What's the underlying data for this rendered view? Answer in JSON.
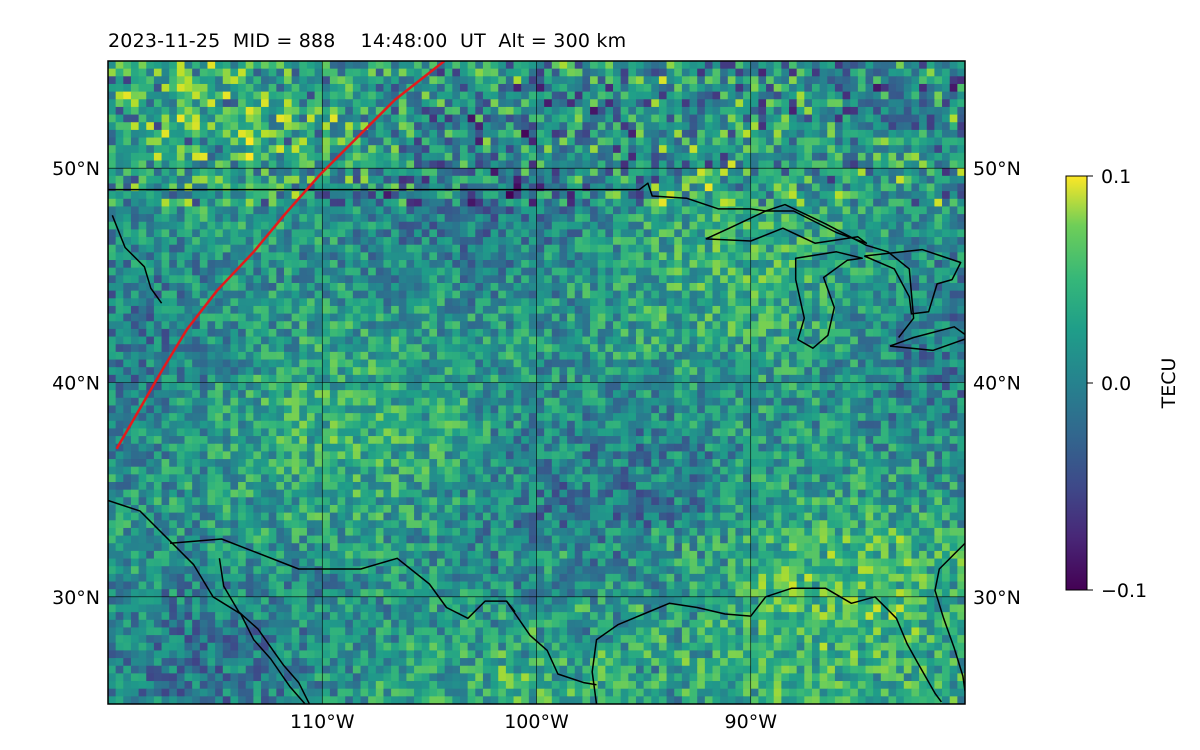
{
  "title": "2023-11-25  MID = 888    14:48:00  UT  Alt = 300 km",
  "map": {
    "lon_range": [
      -120,
      -80
    ],
    "lat_range": [
      25,
      55
    ],
    "lon_gridlines": [
      -120,
      -110,
      -100,
      -90,
      -80
    ],
    "lat_gridlines": [
      30,
      40,
      50
    ],
    "lon_tick_labels": [
      {
        "lon": -110,
        "label": "110°W"
      },
      {
        "lon": -100,
        "label": "100°W"
      },
      {
        "lon": -90,
        "label": "90°W"
      }
    ],
    "lat_tick_labels": [
      {
        "lat": 30,
        "label": "30°N"
      },
      {
        "lat": 40,
        "label": "40°N"
      },
      {
        "lat": 50,
        "label": "50°N"
      }
    ],
    "colormap": "viridis",
    "track_color": "#e41a1c",
    "track": [
      [
        -119.6,
        36.9
      ],
      [
        -118.5,
        38.8
      ],
      [
        -117.4,
        40.7
      ],
      [
        -116.3,
        42.5
      ],
      [
        -114.9,
        44.3
      ],
      [
        -113.2,
        46.1
      ],
      [
        -111.7,
        47.9
      ],
      [
        -110.1,
        49.7
      ],
      [
        -108.3,
        51.5
      ],
      [
        -106.6,
        53.2
      ],
      [
        -104.3,
        55.0
      ]
    ],
    "coastlines": [
      [
        [
          -119.8,
          47.8
        ],
        [
          -119.2,
          46.3
        ],
        [
          -118.3,
          45.4
        ],
        [
          -118.0,
          44.4
        ],
        [
          -117.5,
          43.7
        ]
      ],
      [
        [
          -120,
          34.5
        ],
        [
          -118.5,
          34.0
        ],
        [
          -117.2,
          32.7
        ],
        [
          -116.0,
          31.5
        ],
        [
          -115.1,
          30.0
        ],
        [
          -113.8,
          29.2
        ],
        [
          -113.2,
          28.0
        ],
        [
          -112.4,
          27.1
        ],
        [
          -111.5,
          25.8
        ],
        [
          -110.8,
          25.0
        ]
      ],
      [
        [
          -114.8,
          31.8
        ],
        [
          -114.6,
          30.5
        ],
        [
          -113.9,
          29.3
        ],
        [
          -113.0,
          28.5
        ],
        [
          -112.3,
          27.5
        ],
        [
          -111.8,
          26.8
        ],
        [
          -111.1,
          26.0
        ],
        [
          -110.6,
          25.0
        ]
      ],
      [
        [
          -97.2,
          25.0
        ],
        [
          -97.4,
          26.5
        ],
        [
          -97.2,
          28.0
        ],
        [
          -96.2,
          28.7
        ],
        [
          -95.0,
          29.2
        ],
        [
          -93.8,
          29.7
        ],
        [
          -92.5,
          29.5
        ],
        [
          -91.2,
          29.2
        ],
        [
          -90.0,
          29.1
        ],
        [
          -89.3,
          30.0
        ],
        [
          -88.1,
          30.4
        ],
        [
          -86.5,
          30.4
        ],
        [
          -85.3,
          29.7
        ],
        [
          -84.2,
          30.0
        ],
        [
          -83.2,
          29.0
        ],
        [
          -82.7,
          27.8
        ],
        [
          -82.2,
          26.9
        ],
        [
          -81.4,
          25.5
        ],
        [
          -81.1,
          25.1
        ]
      ],
      [
        [
          -80.0,
          32.5
        ],
        [
          -81.2,
          31.3
        ],
        [
          -81.4,
          30.3
        ],
        [
          -81.0,
          29.0
        ],
        [
          -80.5,
          27.6
        ],
        [
          -80.1,
          26.3
        ],
        [
          -80.0,
          25.6
        ]
      ]
    ],
    "borders": [
      [
        [
          -120,
          49.0
        ],
        [
          -95.2,
          49.0
        ],
        [
          -94.8,
          49.3
        ],
        [
          -94.6,
          48.7
        ],
        [
          -93.0,
          48.6
        ],
        [
          -91.5,
          48.1
        ],
        [
          -90.0,
          48.1
        ],
        [
          -89.3,
          48.0
        ],
        [
          -88.4,
          48.3
        ],
        [
          -86.5,
          47.4
        ],
        [
          -84.6,
          46.4
        ],
        [
          -83.6,
          46.1
        ],
        [
          -82.6,
          45.3
        ],
        [
          -82.4,
          43.0
        ],
        [
          -83.1,
          42.1
        ]
      ],
      [
        [
          -117.1,
          32.5
        ],
        [
          -114.7,
          32.7
        ],
        [
          -111.1,
          31.3
        ],
        [
          -108.2,
          31.3
        ],
        [
          -106.5,
          31.8
        ],
        [
          -105.0,
          30.6
        ],
        [
          -104.2,
          29.5
        ],
        [
          -103.2,
          29.0
        ],
        [
          -102.4,
          29.8
        ],
        [
          -101.4,
          29.8
        ],
        [
          -100.3,
          28.2
        ],
        [
          -99.5,
          27.5
        ],
        [
          -99.0,
          26.4
        ],
        [
          -97.8,
          26.0
        ],
        [
          -97.2,
          25.9
        ]
      ],
      [
        [
          -101.4,
          29.8
        ],
        [
          -101.0,
          29.3
        ]
      ]
    ],
    "lakes": [
      [
        [
          -92.1,
          46.7
        ],
        [
          -90.0,
          46.6
        ],
        [
          -88.5,
          47.2
        ],
        [
          -87.0,
          46.5
        ],
        [
          -85.0,
          46.8
        ],
        [
          -84.6,
          46.5
        ],
        [
          -86.0,
          47.0
        ],
        [
          -88.0,
          48.0
        ],
        [
          -89.3,
          48.0
        ],
        [
          -91.0,
          47.2
        ],
        [
          -92.1,
          46.7
        ]
      ],
      [
        [
          -87.9,
          44.8
        ],
        [
          -87.5,
          43.0
        ],
        [
          -87.8,
          42.0
        ],
        [
          -87.1,
          41.6
        ],
        [
          -86.4,
          42.2
        ],
        [
          -86.1,
          43.5
        ],
        [
          -86.6,
          44.9
        ],
        [
          -85.5,
          45.7
        ],
        [
          -84.8,
          45.8
        ],
        [
          -86.0,
          46.1
        ],
        [
          -87.9,
          45.8
        ],
        [
          -87.9,
          44.8
        ]
      ],
      [
        [
          -84.7,
          45.9
        ],
        [
          -83.3,
          45.3
        ],
        [
          -82.6,
          44.0
        ],
        [
          -82.5,
          43.2
        ],
        [
          -81.7,
          43.3
        ],
        [
          -81.3,
          44.6
        ],
        [
          -80.6,
          44.8
        ],
        [
          -80.2,
          45.6
        ],
        [
          -82.0,
          46.2
        ],
        [
          -84.7,
          45.9
        ]
      ],
      [
        [
          -83.5,
          41.7
        ],
        [
          -81.5,
          41.5
        ],
        [
          -79.8,
          42.1
        ],
        [
          -80.5,
          42.6
        ],
        [
          -82.4,
          42.1
        ],
        [
          -83.5,
          41.7
        ]
      ],
      [
        [
          -79.8,
          43.2
        ],
        [
          -77.5,
          43.3
        ],
        [
          -76.2,
          43.5
        ],
        [
          -79.2,
          43.8
        ],
        [
          -79.8,
          43.2
        ]
      ]
    ]
  },
  "colorbar": {
    "label": "TECU",
    "ticks": [
      {
        "value": 0.1,
        "label": "0.1"
      },
      {
        "value": 0.0,
        "label": "0.0"
      },
      {
        "value": -0.1,
        "label": "−0.1"
      }
    ],
    "vmin": -0.1,
    "vmax": 0.1
  }
}
